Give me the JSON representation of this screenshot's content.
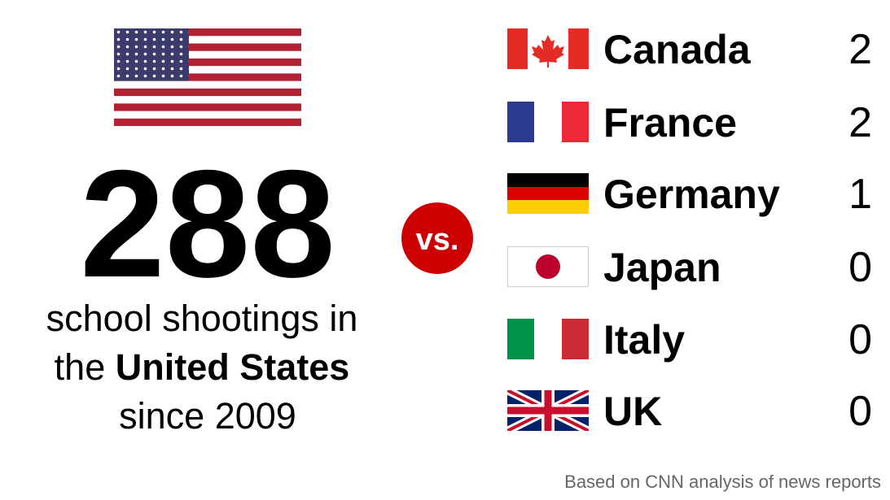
{
  "us": {
    "count": 288,
    "line1": "school shootings in",
    "line2_pre": "the",
    "line2_bold": "United States",
    "line3": "since 2009"
  },
  "vs": "vs.",
  "countries": [
    {
      "name": "Canada",
      "count": 2
    },
    {
      "name": "France",
      "count": 2
    },
    {
      "name": "Germany",
      "count": 1
    },
    {
      "name": "Japan",
      "count": 0
    },
    {
      "name": "Italy",
      "count": 0
    },
    {
      "name": "UK",
      "count": 0
    }
  ],
  "source": "Based on CNN analysis of news reports"
}
